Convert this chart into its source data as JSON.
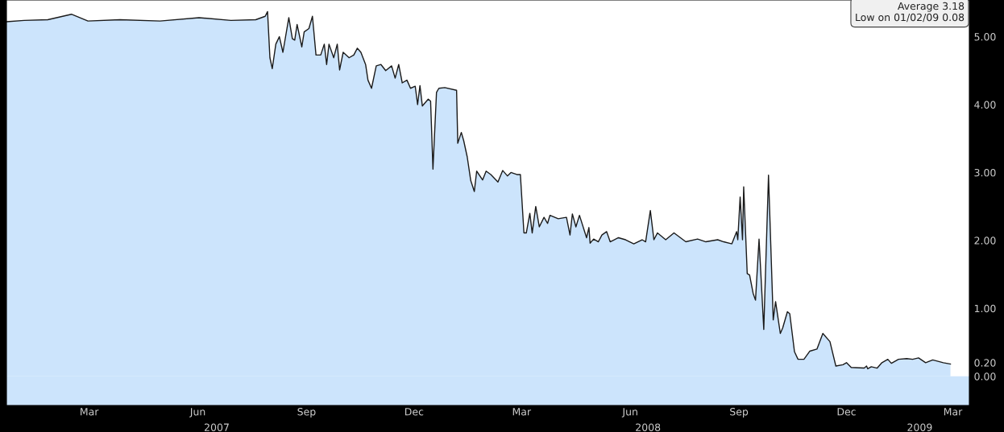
{
  "chart_data": {
    "type": "area",
    "x": [
      "2007-01-05",
      "2007-01-20",
      "2007-02-09",
      "2007-03-01",
      "2007-03-15",
      "2007-04-11",
      "2007-05-15",
      "2007-06-17",
      "2007-07-14",
      "2007-08-04",
      "2007-08-12",
      "2007-08-14",
      "2007-08-16",
      "2007-08-18",
      "2007-08-21",
      "2007-08-24",
      "2007-08-27",
      "2007-09-01",
      "2007-09-04",
      "2007-09-06",
      "2007-09-08",
      "2007-09-12",
      "2007-09-14",
      "2007-09-18",
      "2007-09-21",
      "2007-09-24",
      "2007-09-28",
      "2007-10-01",
      "2007-10-03",
      "2007-10-05",
      "2007-10-09",
      "2007-10-12",
      "2007-10-14",
      "2007-10-17",
      "2007-10-22",
      "2007-10-26",
      "2007-10-29",
      "2007-11-01",
      "2007-11-05",
      "2007-11-07",
      "2007-11-10",
      "2007-11-14",
      "2007-11-18",
      "2007-11-22",
      "2007-11-27",
      "2007-11-30",
      "2007-12-03",
      "2007-12-06",
      "2007-12-10",
      "2007-12-13",
      "2007-12-17",
      "2007-12-19",
      "2007-12-21",
      "2007-12-23",
      "2007-12-28",
      "2007-12-30",
      "2008-01-01",
      "2008-01-04",
      "2008-01-06",
      "2008-01-11",
      "2008-01-21",
      "2008-01-22",
      "2008-01-25",
      "2008-01-27",
      "2008-01-30",
      "2008-02-02",
      "2008-02-05",
      "2008-02-07",
      "2008-02-12",
      "2008-02-15",
      "2008-02-19",
      "2008-02-25",
      "2008-02-29",
      "2008-03-04",
      "2008-03-07",
      "2008-03-12",
      "2008-03-15",
      "2008-03-18",
      "2008-03-20",
      "2008-03-23",
      "2008-03-25",
      "2008-03-28",
      "2008-03-31",
      "2008-04-04",
      "2008-04-07",
      "2008-04-09",
      "2008-04-16",
      "2008-04-23",
      "2008-04-26",
      "2008-04-28",
      "2008-05-01",
      "2008-05-04",
      "2008-05-10",
      "2008-05-12",
      "2008-05-13",
      "2008-05-16",
      "2008-05-20",
      "2008-05-23",
      "2008-05-27",
      "2008-05-30",
      "2008-06-06",
      "2008-06-12",
      "2008-06-19",
      "2008-06-26",
      "2008-06-29",
      "2008-07-03",
      "2008-07-06",
      "2008-07-09",
      "2008-07-16",
      "2008-07-23",
      "2008-08-02",
      "2008-08-12",
      "2008-08-19",
      "2008-08-29",
      "2008-09-03",
      "2008-09-10",
      "2008-09-14",
      "2008-09-15",
      "2008-09-17",
      "2008-09-19",
      "2008-09-20",
      "2008-09-23",
      "2008-09-25",
      "2008-09-28",
      "2008-09-30",
      "2008-10-03",
      "2008-10-07",
      "2008-10-11",
      "2008-10-15",
      "2008-10-17",
      "2008-10-21",
      "2008-10-23",
      "2008-10-27",
      "2008-10-29",
      "2008-11-02",
      "2008-11-05",
      "2008-11-10",
      "2008-11-15",
      "2008-11-21",
      "2008-11-26",
      "2008-12-02",
      "2008-12-07",
      "2008-12-13",
      "2008-12-16",
      "2008-12-20",
      "2008-12-31",
      "2009-01-02",
      "2009-01-03",
      "2009-01-06",
      "2009-01-11",
      "2009-01-15",
      "2009-01-20",
      "2009-01-23",
      "2009-01-29",
      "2009-02-05",
      "2009-02-10",
      "2009-02-15",
      "2009-02-21",
      "2009-02-27",
      "2009-03-08",
      "2009-03-14"
    ],
    "series": [
      {
        "color": "#cce4fc",
        "values": [
          5.22,
          5.24,
          5.25,
          5.33,
          5.23,
          5.25,
          5.23,
          5.28,
          5.24,
          5.25,
          5.3,
          5.37,
          4.69,
          4.53,
          4.89,
          5.0,
          4.77,
          5.28,
          4.97,
          4.95,
          5.18,
          4.85,
          5.07,
          5.12,
          5.3,
          4.73,
          4.73,
          4.89,
          4.59,
          4.89,
          4.69,
          4.89,
          4.51,
          4.77,
          4.69,
          4.73,
          4.83,
          4.77,
          4.59,
          4.36,
          4.24,
          4.57,
          4.59,
          4.5,
          4.57,
          4.39,
          4.59,
          4.32,
          4.36,
          4.24,
          4.27,
          4.0,
          4.28,
          3.98,
          4.08,
          4.05,
          3.05,
          4.18,
          4.24,
          4.25,
          4.21,
          3.43,
          3.59,
          3.47,
          3.23,
          2.88,
          2.72,
          3.02,
          2.89,
          3.02,
          2.97,
          2.86,
          3.03,
          2.95,
          3.0,
          2.97,
          2.97,
          2.11,
          2.11,
          2.4,
          2.11,
          2.5,
          2.2,
          2.34,
          2.25,
          2.37,
          2.32,
          2.34,
          2.08,
          2.39,
          2.2,
          2.37,
          2.04,
          2.19,
          1.96,
          2.02,
          1.98,
          2.08,
          2.13,
          1.98,
          2.04,
          2.01,
          1.95,
          2.01,
          1.98,
          2.44,
          2.01,
          2.11,
          2.01,
          2.11,
          1.98,
          2.02,
          1.98,
          2.01,
          1.98,
          1.95,
          2.13,
          2.01,
          2.64,
          2.01,
          2.79,
          1.51,
          1.49,
          1.22,
          1.12,
          2.02,
          0.69,
          2.96,
          0.83,
          1.1,
          0.63,
          0.71,
          0.95,
          0.92,
          0.36,
          0.25,
          0.25,
          0.37,
          0.4,
          0.63,
          0.51,
          0.15,
          0.17,
          0.2,
          0.13,
          0.12,
          0.15,
          0.11,
          0.14,
          0.12,
          0.2,
          0.25,
          0.19,
          0.25,
          0.26,
          0.25,
          0.27,
          0.2,
          0.24,
          0.2,
          0.18
        ]
      }
    ],
    "xlim": [
      "2007-01-05",
      "2009-03-30"
    ],
    "xticks": [
      {
        "value": "2007-03-16",
        "label": "Mar"
      },
      {
        "value": "2007-06-16",
        "label": "Jun"
      },
      {
        "value": "2007-09-16",
        "label": "Sep"
      },
      {
        "value": "2007-12-16",
        "label": "Dec"
      },
      {
        "value": "2008-03-16",
        "label": "Mar"
      },
      {
        "value": "2008-06-16",
        "label": "Jun"
      },
      {
        "value": "2008-09-16",
        "label": "Sep"
      },
      {
        "value": "2008-12-16",
        "label": "Dec"
      },
      {
        "value": "2009-03-16",
        "label": "Mar"
      }
    ],
    "x2lim": [
      "2007-01-05",
      "2009-03-30"
    ],
    "x2ticks": [
      {
        "value": "2007-07-02",
        "label": "2007"
      },
      {
        "value": "2008-07-01",
        "label": "2008"
      },
      {
        "value": "2009-02-16",
        "label": "2009"
      }
    ],
    "ylim": [
      -0.43,
      5.54
    ],
    "yticks": [
      {
        "value": 0,
        "label": "0.00"
      },
      {
        "value": 0.2,
        "label": "0.20"
      },
      {
        "value": 1,
        "label": "1.00"
      },
      {
        "value": 2,
        "label": "2.00"
      },
      {
        "value": 3,
        "label": "3.00"
      },
      {
        "value": 4,
        "label": "4.00"
      },
      {
        "value": 5,
        "label": "5.00"
      }
    ],
    "bands": [
      {
        "axis": "y",
        "from": -0.43,
        "to": 0,
        "color": "#cce4fc"
      }
    ],
    "annotations": [
      "Average 3.18",
      "Low on 01/02/09 0.08"
    ],
    "grid": false,
    "legend": false
  }
}
